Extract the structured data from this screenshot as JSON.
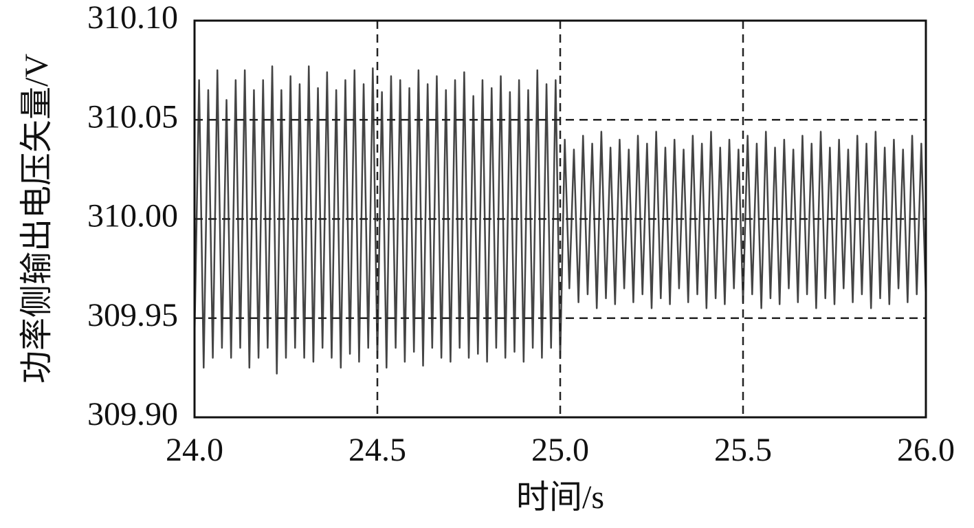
{
  "chart_data": {
    "type": "line",
    "y_label": "功率侧输出电压矢量/V",
    "x_label": "时间/s",
    "color": "#444444",
    "grid": true,
    "xlim": [
      24,
      26
    ],
    "ylim": [
      309.9,
      310.1
    ],
    "xticks": [
      {
        "value": 24,
        "label": "24.0"
      },
      24.5,
      {
        "value": 25,
        "label": "25.0"
      },
      25.5,
      {
        "value": 26,
        "label": "26.0"
      }
    ],
    "yticks": [
      {
        "value": 309.9,
        "label": "309.90"
      },
      309.95,
      {
        "value": 310,
        "label": "310.00"
      },
      310.05,
      {
        "value": 310.1,
        "label": "310.10"
      }
    ],
    "x": [
      24,
      24.0125,
      24.025,
      24.0375,
      24.05,
      24.0625,
      24.075,
      24.0875,
      24.1,
      24.1125,
      24.125,
      24.1375,
      24.15,
      24.1625,
      24.175,
      24.1875,
      24.2,
      24.2125,
      24.225,
      24.2375,
      24.25,
      24.2625,
      24.275,
      24.2875,
      24.3,
      24.3125,
      24.325,
      24.3375,
      24.35,
      24.3625,
      24.375,
      24.3875,
      24.4,
      24.4125,
      24.425,
      24.4375,
      24.45,
      24.4625,
      24.475,
      24.4875,
      24.5,
      24.5125,
      24.525,
      24.5375,
      24.55,
      24.5625,
      24.575,
      24.5875,
      24.6,
      24.6125,
      24.625,
      24.6375,
      24.65,
      24.6625,
      24.675,
      24.6875,
      24.7,
      24.7125,
      24.725,
      24.7375,
      24.75,
      24.7625,
      24.775,
      24.7875,
      24.8,
      24.8125,
      24.825,
      24.8375,
      24.85,
      24.8625,
      24.875,
      24.8875,
      24.9,
      24.9125,
      24.925,
      24.9375,
      24.95,
      24.9625,
      24.975,
      24.9875,
      25,
      25.0125,
      25.025,
      25.0375,
      25.05,
      25.0625,
      25.075,
      25.0875,
      25.1,
      25.1125,
      25.125,
      25.1375,
      25.15,
      25.1625,
      25.175,
      25.1875,
      25.2,
      25.2125,
      25.225,
      25.2375,
      25.25,
      25.2625,
      25.275,
      25.2875,
      25.3,
      25.3125,
      25.325,
      25.3375,
      25.35,
      25.3625,
      25.375,
      25.3875,
      25.4,
      25.4125,
      25.425,
      25.4375,
      25.45,
      25.4625,
      25.475,
      25.4875,
      25.5,
      25.5125,
      25.525,
      25.5375,
      25.55,
      25.5625,
      25.575,
      25.5875,
      25.6,
      25.6125,
      25.625,
      25.6375,
      25.65,
      25.6625,
      25.675,
      25.6875,
      25.7,
      25.7125,
      25.725,
      25.7375,
      25.75,
      25.7625,
      25.775,
      25.7875,
      25.8,
      25.8125,
      25.825,
      25.8375,
      25.85,
      25.8625,
      25.875,
      25.8875,
      25.9,
      25.9125,
      25.925,
      25.9375,
      25.95,
      25.9625,
      25.975,
      25.9875,
      26
    ],
    "values": [
      309.94,
      310.07,
      309.925,
      310.065,
      309.93,
      310.075,
      309.935,
      310.06,
      309.93,
      310.07,
      309.935,
      310.075,
      309.925,
      310.065,
      309.93,
      310.07,
      309.935,
      310.077,
      309.922,
      310.065,
      309.93,
      310.072,
      309.935,
      310.068,
      309.93,
      310.077,
      309.928,
      310.066,
      309.935,
      310.074,
      309.93,
      310.065,
      309.925,
      310.07,
      309.932,
      310.075,
      309.928,
      310.068,
      309.935,
      310.076,
      309.93,
      310.064,
      309.925,
      310.072,
      309.935,
      310.07,
      309.928,
      310.066,
      309.933,
      310.075,
      309.926,
      310.068,
      309.935,
      310.072,
      309.93,
      310.065,
      309.928,
      310.07,
      309.935,
      310.074,
      309.93,
      310.062,
      309.932,
      310.07,
      309.928,
      310.066,
      309.935,
      310.072,
      309.93,
      310.064,
      309.933,
      310.07,
      309.928,
      310.065,
      309.935,
      310.075,
      309.93,
      310.068,
      309.935,
      310.07,
      309.93,
      310.04,
      309.965,
      310.035,
      309.958,
      310.042,
      309.962,
      310.038,
      309.955,
      310.044,
      309.96,
      310.036,
      309.957,
      310.04,
      309.965,
      310.035,
      309.958,
      310.042,
      309.962,
      310.038,
      309.955,
      310.044,
      309.96,
      310.036,
      309.957,
      310.04,
      309.965,
      310.035,
      309.958,
      310.042,
      309.962,
      310.038,
      309.955,
      310.044,
      309.96,
      310.036,
      309.957,
      310.04,
      309.965,
      310.035,
      309.958,
      310.042,
      309.962,
      310.038,
      309.955,
      310.044,
      309.96,
      310.036,
      309.957,
      310.04,
      309.965,
      310.035,
      309.958,
      310.042,
      309.962,
      310.038,
      309.955,
      310.044,
      309.96,
      310.036,
      309.957,
      310.04,
      309.965,
      310.035,
      309.958,
      310.042,
      309.962,
      310.038,
      309.955,
      310.044,
      309.96,
      310.036,
      309.957,
      310.04,
      309.965,
      310.035,
      309.958,
      310.042,
      309.962,
      310.038,
      309.96
    ]
  }
}
